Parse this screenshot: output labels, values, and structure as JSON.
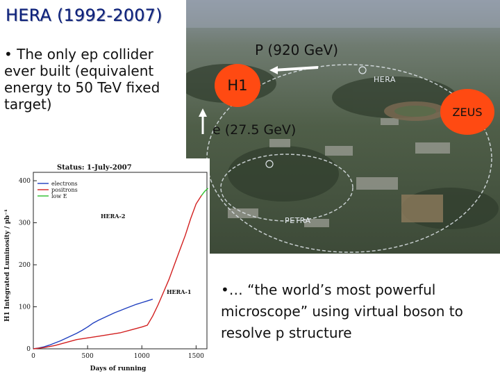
{
  "slide": {
    "title": "HERA (1992-2007)",
    "bullet_left": "• The only ep collider ever built (equivalent energy to 50 TeV fixed target)",
    "bullet_right": "•… “the world’s most powerful microscope” using virtual boson to resolve p structure"
  },
  "photo": {
    "proton_label": "P (920 GeV)",
    "electron_label": "e (27.5 GeV)",
    "h1_label": "H1",
    "zeus_label": "ZEUS",
    "hera_ring_label": "HERA",
    "petra_ring_label": "PETRA",
    "detector_color": "#ff4a12"
  },
  "chart_data": {
    "type": "line",
    "title": "Status: 1-July-2007",
    "ylabel": "H1 Integrated Luminosity / pb⁻¹",
    "xlabel": "Days of running",
    "xlim": [
      0,
      1600
    ],
    "ylim": [
      0,
      420
    ],
    "xticks": [
      "0",
      "500",
      "1000",
      "1500"
    ],
    "yticks": [
      "0",
      "100",
      "200",
      "300",
      "400"
    ],
    "legend": [
      "electrons",
      "positrons",
      "low E"
    ],
    "annotations": [
      "HERA-2",
      "HERA-1"
    ],
    "series": [
      {
        "name": "electrons",
        "color": "#1f3fbf",
        "x": [
          0,
          50,
          100,
          150,
          200,
          250,
          300,
          350,
          400,
          450,
          500,
          550,
          600,
          650,
          700,
          750,
          800,
          850,
          900,
          950,
          1000,
          1050,
          1100
        ],
        "y": [
          0,
          2,
          5,
          9,
          14,
          19,
          25,
          31,
          37,
          44,
          52,
          61,
          68,
          74,
          80,
          86,
          91,
          96,
          101,
          106,
          110,
          114,
          118
        ]
      },
      {
        "name": "positrons",
        "color": "#d21f1f",
        "x": [
          0,
          100,
          200,
          300,
          400,
          500,
          600,
          700,
          800,
          900,
          1000,
          1050,
          1100,
          1150,
          1200,
          1250,
          1300,
          1350,
          1400,
          1450,
          1500,
          1550
        ],
        "y": [
          0,
          3,
          8,
          15,
          22,
          26,
          30,
          34,
          38,
          45,
          52,
          56,
          78,
          105,
          135,
          165,
          200,
          235,
          270,
          310,
          345,
          365
        ]
      },
      {
        "name": "low E",
        "color": "#2cbf2c",
        "x": [
          1550,
          1580,
          1610
        ],
        "y": [
          365,
          375,
          382
        ]
      }
    ]
  }
}
